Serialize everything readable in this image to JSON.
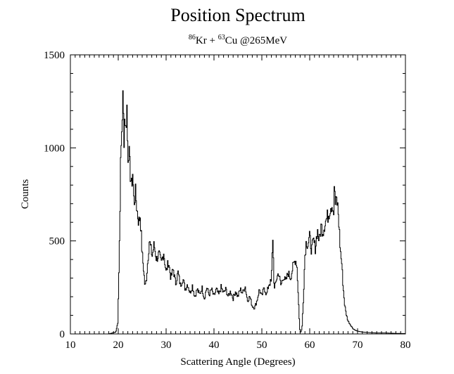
{
  "chart_data": {
    "type": "line",
    "title": "Position Spectrum",
    "subtitle": {
      "parts": [
        {
          "text": "86",
          "sup": true
        },
        {
          "text": "Kr + ",
          "sup": false
        },
        {
          "text": "63",
          "sup": true
        },
        {
          "text": "Cu @265MeV",
          "sup": false
        }
      ]
    },
    "xlabel": "Scattering Angle (Degrees)",
    "ylabel": "Counts",
    "xlim": [
      10,
      80
    ],
    "ylim": [
      0,
      1500
    ],
    "xticks": [
      10,
      20,
      30,
      40,
      50,
      60,
      70,
      80
    ],
    "xtick_labels": [
      "10",
      "20",
      "30",
      "40",
      "50",
      "60",
      "70",
      "80"
    ],
    "yticks": [
      0,
      500,
      1000,
      1500
    ],
    "ytick_labels": [
      "0",
      "500",
      "1000",
      "1500"
    ],
    "grid": false,
    "legend": "none",
    "line_color": "#000000",
    "series": [
      {
        "x": [
          10,
          18,
          19.5,
          19.9,
          20.2,
          20.5,
          20.8,
          21.0,
          21.2,
          21.4,
          21.6,
          21.8,
          22.0,
          22.2,
          22.4,
          22.6,
          22.8,
          23.0,
          23.3,
          23.6,
          24.0,
          24.3,
          24.6,
          25.0,
          25.3,
          25.6,
          25.9,
          26.2,
          26.5,
          26.8,
          27.1,
          27.5,
          28.0,
          28.5,
          29.0,
          29.5,
          30.0,
          30.5,
          31.0,
          31.5,
          32.0,
          32.5,
          33.0,
          33.5,
          34.0,
          34.5,
          35.0,
          35.5,
          36.0,
          36.5,
          37.0,
          37.5,
          38.0,
          38.5,
          39.0,
          39.5,
          40.0,
          40.5,
          41.0,
          41.5,
          42.0,
          42.5,
          43.0,
          43.5,
          44.0,
          44.5,
          45.0,
          45.5,
          46.0,
          46.5,
          47.0,
          47.5,
          48.0,
          48.5,
          49.0,
          49.5,
          50.0,
          50.5,
          51.0,
          51.5,
          52.0,
          52.3,
          52.6,
          52.8,
          53.0,
          53.5,
          54.0,
          54.5,
          55.0,
          55.5,
          56.0,
          56.5,
          57.0,
          57.3,
          57.6,
          57.9,
          58.1,
          58.4,
          58.7,
          59.0,
          59.3,
          59.6,
          60.0,
          60.4,
          60.8,
          61.2,
          61.6,
          62.0,
          62.4,
          62.8,
          63.2,
          63.6,
          64.0,
          64.4,
          64.8,
          65.0,
          65.2,
          65.4,
          65.6,
          65.8,
          66.0,
          66.2,
          66.4,
          66.7,
          67.0,
          67.3,
          67.6,
          68.0,
          68.5,
          69.0,
          69.5,
          70.0,
          71.0,
          72.0,
          74.0,
          76.0,
          78.0,
          80.0
        ],
        "y": [
          0,
          0,
          10,
          60,
          400,
          900,
          1150,
          1270,
          1050,
          1200,
          1080,
          1250,
          950,
          1000,
          900,
          850,
          780,
          880,
          700,
          760,
          650,
          600,
          640,
          430,
          350,
          250,
          300,
          400,
          500,
          460,
          420,
          480,
          400,
          430,
          380,
          440,
          330,
          390,
          300,
          350,
          270,
          330,
          260,
          300,
          240,
          270,
          220,
          260,
          200,
          240,
          210,
          250,
          190,
          250,
          210,
          240,
          200,
          240,
          210,
          250,
          220,
          240,
          200,
          230,
          190,
          230,
          200,
          240,
          220,
          260,
          180,
          200,
          150,
          140,
          180,
          240,
          200,
          250,
          210,
          270,
          280,
          520,
          230,
          260,
          290,
          330,
          260,
          310,
          280,
          330,
          300,
          360,
          400,
          380,
          220,
          30,
          5,
          30,
          200,
          420,
          500,
          480,
          520,
          450,
          500,
          460,
          560,
          500,
          580,
          550,
          600,
          620,
          650,
          690,
          700,
          640,
          810,
          680,
          720,
          700,
          640,
          550,
          450,
          380,
          250,
          160,
          110,
          70,
          50,
          30,
          20,
          15,
          10,
          8,
          5,
          5,
          3,
          2
        ]
      }
    ]
  }
}
